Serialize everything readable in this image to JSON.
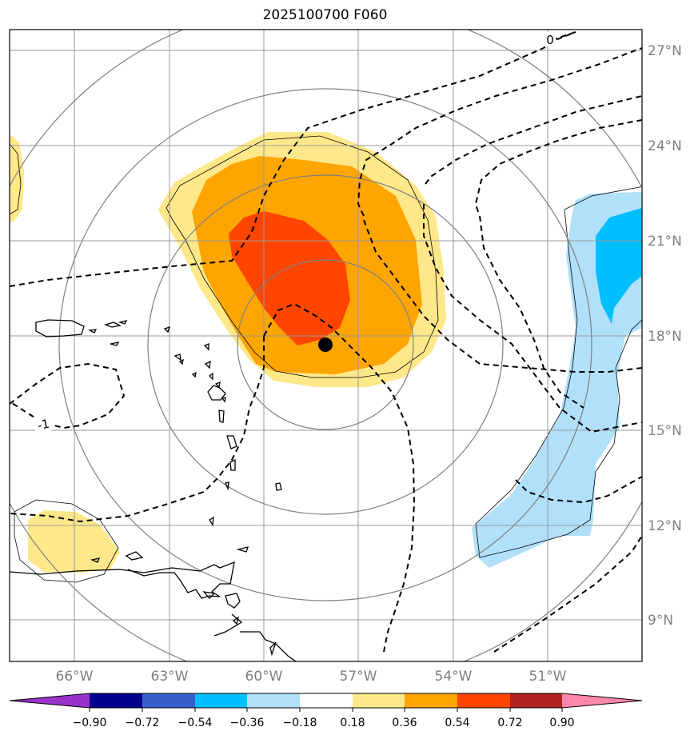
{
  "title": "2025100700 F060",
  "map": {
    "lon_labels": [
      "66°W",
      "63°W",
      "60°W",
      "57°W",
      "54°W",
      "51°W"
    ],
    "lat_labels": [
      "9°N",
      "12°N",
      "15°N",
      "18°N",
      "21°N",
      "24°N",
      "27°N"
    ],
    "contour_labels": [
      "0",
      "-1"
    ],
    "storm_center": "58°W 17.6°N",
    "gridline_color": "#999999",
    "tick_label_color": "#808080"
  },
  "colorbar": {
    "tick_labels": [
      "−0.90",
      "−0.72",
      "−0.54",
      "−0.36",
      "−0.18",
      "0.18",
      "0.36",
      "0.54",
      "0.72",
      "0.90"
    ],
    "colors": [
      "#9932cc",
      "#00008b",
      "#3a5fcd",
      "#00bfff",
      "#b0e0fa",
      "#ffffff",
      "#ffe88a",
      "#ffa500",
      "#ff4500",
      "#b22222",
      "#ff88aa"
    ]
  }
}
